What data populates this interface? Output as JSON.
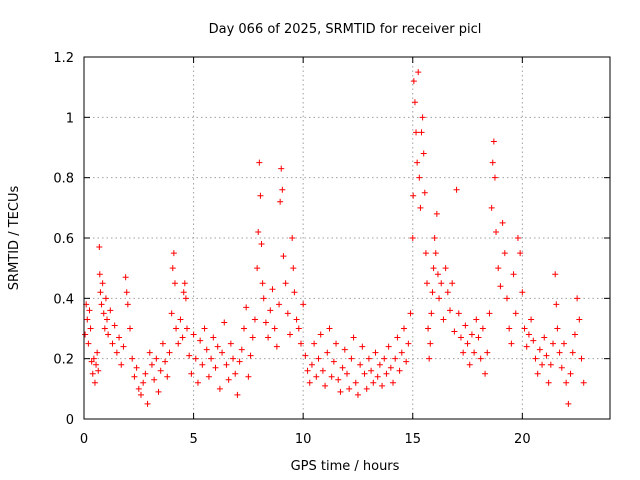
{
  "chart_data": {
    "type": "scatter",
    "title": "Day 066 of 2025, SRMTID for receiver picl",
    "xlabel": "GPS time / hours",
    "ylabel": "SRMTID / TECUs",
    "xlim": [
      0,
      24
    ],
    "ylim": [
      0,
      1.2
    ],
    "x_ticks": [
      0,
      5,
      10,
      15,
      20
    ],
    "x_tick_labels": [
      "0",
      "5",
      "10",
      "15",
      "20"
    ],
    "y_ticks": [
      0,
      0.2,
      0.4,
      0.6,
      0.8,
      1.0,
      1.2
    ],
    "y_tick_labels": [
      "0",
      "0.2",
      "0.4",
      "0.6",
      "0.8",
      "1",
      "1.2"
    ],
    "grid": true,
    "marker": "plus",
    "color": "#ff0000",
    "series": [
      {
        "name": "SRMTID",
        "points": [
          [
            0.05,
            0.28
          ],
          [
            0.1,
            0.38
          ],
          [
            0.15,
            0.33
          ],
          [
            0.2,
            0.25
          ],
          [
            0.25,
            0.36
          ],
          [
            0.3,
            0.3
          ],
          [
            0.35,
            0.19
          ],
          [
            0.4,
            0.15
          ],
          [
            0.45,
            0.2
          ],
          [
            0.5,
            0.12
          ],
          [
            0.55,
            0.18
          ],
          [
            0.6,
            0.22
          ],
          [
            0.65,
            0.16
          ],
          [
            0.7,
            0.57
          ],
          [
            0.72,
            0.48
          ],
          [
            0.75,
            0.42
          ],
          [
            0.8,
            0.38
          ],
          [
            0.85,
            0.45
          ],
          [
            0.9,
            0.35
          ],
          [
            0.95,
            0.3
          ],
          [
            1.0,
            0.4
          ],
          [
            1.05,
            0.33
          ],
          [
            1.1,
            0.28
          ],
          [
            1.2,
            0.36
          ],
          [
            1.3,
            0.25
          ],
          [
            1.4,
            0.31
          ],
          [
            1.5,
            0.22
          ],
          [
            1.6,
            0.27
          ],
          [
            1.7,
            0.18
          ],
          [
            1.8,
            0.24
          ],
          [
            1.9,
            0.47
          ],
          [
            1.95,
            0.42
          ],
          [
            2.0,
            0.38
          ],
          [
            2.1,
            0.3
          ],
          [
            2.2,
            0.2
          ],
          [
            2.3,
            0.14
          ],
          [
            2.4,
            0.17
          ],
          [
            2.5,
            0.1
          ],
          [
            2.6,
            0.08
          ],
          [
            2.7,
            0.12
          ],
          [
            2.8,
            0.15
          ],
          [
            2.9,
            0.05
          ],
          [
            3.0,
            0.22
          ],
          [
            3.1,
            0.18
          ],
          [
            3.2,
            0.13
          ],
          [
            3.3,
            0.2
          ],
          [
            3.4,
            0.09
          ],
          [
            3.5,
            0.16
          ],
          [
            3.6,
            0.25
          ],
          [
            3.7,
            0.19
          ],
          [
            3.8,
            0.14
          ],
          [
            3.9,
            0.22
          ],
          [
            4.0,
            0.35
          ],
          [
            4.05,
            0.5
          ],
          [
            4.1,
            0.55
          ],
          [
            4.15,
            0.45
          ],
          [
            4.2,
            0.3
          ],
          [
            4.3,
            0.25
          ],
          [
            4.4,
            0.33
          ],
          [
            4.5,
            0.27
          ],
          [
            4.55,
            0.42
          ],
          [
            4.6,
            0.45
          ],
          [
            4.65,
            0.4
          ],
          [
            4.7,
            0.3
          ],
          [
            4.8,
            0.21
          ],
          [
            4.9,
            0.15
          ],
          [
            5.0,
            0.28
          ],
          [
            5.1,
            0.2
          ],
          [
            5.2,
            0.12
          ],
          [
            5.3,
            0.26
          ],
          [
            5.4,
            0.18
          ],
          [
            5.5,
            0.3
          ],
          [
            5.6,
            0.23
          ],
          [
            5.7,
            0.14
          ],
          [
            5.8,
            0.2
          ],
          [
            5.9,
            0.27
          ],
          [
            6.0,
            0.17
          ],
          [
            6.1,
            0.24
          ],
          [
            6.2,
            0.1
          ],
          [
            6.3,
            0.22
          ],
          [
            6.4,
            0.32
          ],
          [
            6.5,
            0.18
          ],
          [
            6.6,
            0.13
          ],
          [
            6.7,
            0.25
          ],
          [
            6.8,
            0.2
          ],
          [
            6.9,
            0.15
          ],
          [
            7.0,
            0.08
          ],
          [
            7.1,
            0.19
          ],
          [
            7.2,
            0.23
          ],
          [
            7.3,
            0.3
          ],
          [
            7.4,
            0.37
          ],
          [
            7.5,
            0.14
          ],
          [
            7.6,
            0.21
          ],
          [
            7.7,
            0.27
          ],
          [
            7.8,
            0.33
          ],
          [
            7.9,
            0.5
          ],
          [
            7.95,
            0.62
          ],
          [
            8.0,
            0.85
          ],
          [
            8.05,
            0.74
          ],
          [
            8.1,
            0.58
          ],
          [
            8.15,
            0.45
          ],
          [
            8.2,
            0.4
          ],
          [
            8.3,
            0.32
          ],
          [
            8.4,
            0.27
          ],
          [
            8.5,
            0.36
          ],
          [
            8.6,
            0.43
          ],
          [
            8.7,
            0.3
          ],
          [
            8.8,
            0.24
          ],
          [
            8.9,
            0.38
          ],
          [
            8.95,
            0.72
          ],
          [
            9.0,
            0.83
          ],
          [
            9.05,
            0.76
          ],
          [
            9.1,
            0.54
          ],
          [
            9.2,
            0.45
          ],
          [
            9.3,
            0.35
          ],
          [
            9.4,
            0.28
          ],
          [
            9.5,
            0.6
          ],
          [
            9.55,
            0.5
          ],
          [
            9.6,
            0.42
          ],
          [
            9.7,
            0.33
          ],
          [
            9.8,
            0.3
          ],
          [
            9.9,
            0.25
          ],
          [
            10.0,
            0.38
          ],
          [
            10.1,
            0.21
          ],
          [
            10.2,
            0.16
          ],
          [
            10.3,
            0.12
          ],
          [
            10.4,
            0.18
          ],
          [
            10.5,
            0.25
          ],
          [
            10.6,
            0.14
          ],
          [
            10.7,
            0.2
          ],
          [
            10.8,
            0.28
          ],
          [
            10.9,
            0.16
          ],
          [
            11.0,
            0.11
          ],
          [
            11.1,
            0.22
          ],
          [
            11.2,
            0.3
          ],
          [
            11.3,
            0.14
          ],
          [
            11.4,
            0.19
          ],
          [
            11.5,
            0.25
          ],
          [
            11.6,
            0.13
          ],
          [
            11.7,
            0.09
          ],
          [
            11.8,
            0.17
          ],
          [
            11.9,
            0.23
          ],
          [
            12.0,
            0.15
          ],
          [
            12.1,
            0.1
          ],
          [
            12.2,
            0.2
          ],
          [
            12.3,
            0.27
          ],
          [
            12.4,
            0.12
          ],
          [
            12.5,
            0.08
          ],
          [
            12.6,
            0.18
          ],
          [
            12.7,
            0.24
          ],
          [
            12.8,
            0.15
          ],
          [
            12.9,
            0.1
          ],
          [
            13.0,
            0.2
          ],
          [
            13.1,
            0.16
          ],
          [
            13.2,
            0.12
          ],
          [
            13.3,
            0.22
          ],
          [
            13.4,
            0.14
          ],
          [
            13.5,
            0.18
          ],
          [
            13.6,
            0.11
          ],
          [
            13.7,
            0.2
          ],
          [
            13.8,
            0.15
          ],
          [
            13.9,
            0.24
          ],
          [
            14.0,
            0.17
          ],
          [
            14.1,
            0.12
          ],
          [
            14.2,
            0.2
          ],
          [
            14.3,
            0.27
          ],
          [
            14.4,
            0.16
          ],
          [
            14.5,
            0.22
          ],
          [
            14.6,
            0.3
          ],
          [
            14.7,
            0.19
          ],
          [
            14.8,
            0.25
          ],
          [
            14.9,
            0.35
          ],
          [
            15.0,
            0.6
          ],
          [
            15.02,
            0.74
          ],
          [
            15.05,
            1.12
          ],
          [
            15.1,
            1.05
          ],
          [
            15.15,
            0.95
          ],
          [
            15.2,
            0.85
          ],
          [
            15.25,
            1.15
          ],
          [
            15.3,
            0.8
          ],
          [
            15.35,
            0.7
          ],
          [
            15.4,
            0.95
          ],
          [
            15.45,
            1.0
          ],
          [
            15.5,
            0.88
          ],
          [
            15.55,
            0.75
          ],
          [
            15.6,
            0.55
          ],
          [
            15.65,
            0.45
          ],
          [
            15.7,
            0.3
          ],
          [
            15.75,
            0.2
          ],
          [
            15.8,
            0.25
          ],
          [
            15.85,
            0.35
          ],
          [
            15.9,
            0.42
          ],
          [
            15.95,
            0.5
          ],
          [
            16.0,
            0.6
          ],
          [
            16.05,
            0.55
          ],
          [
            16.1,
            0.68
          ],
          [
            16.15,
            0.48
          ],
          [
            16.2,
            0.4
          ],
          [
            16.3,
            0.45
          ],
          [
            16.4,
            0.33
          ],
          [
            16.5,
            0.5
          ],
          [
            16.6,
            0.42
          ],
          [
            16.7,
            0.36
          ],
          [
            16.8,
            0.45
          ],
          [
            16.9,
            0.29
          ],
          [
            17.0,
            0.76
          ],
          [
            17.1,
            0.35
          ],
          [
            17.2,
            0.27
          ],
          [
            17.3,
            0.22
          ],
          [
            17.4,
            0.31
          ],
          [
            17.5,
            0.25
          ],
          [
            17.6,
            0.18
          ],
          [
            17.7,
            0.28
          ],
          [
            17.8,
            0.22
          ],
          [
            17.9,
            0.33
          ],
          [
            18.0,
            0.27
          ],
          [
            18.1,
            0.2
          ],
          [
            18.2,
            0.3
          ],
          [
            18.3,
            0.15
          ],
          [
            18.4,
            0.22
          ],
          [
            18.5,
            0.35
          ],
          [
            18.6,
            0.7
          ],
          [
            18.65,
            0.85
          ],
          [
            18.7,
            0.92
          ],
          [
            18.75,
            0.8
          ],
          [
            18.8,
            0.62
          ],
          [
            18.9,
            0.5
          ],
          [
            19.0,
            0.44
          ],
          [
            19.1,
            0.65
          ],
          [
            19.2,
            0.55
          ],
          [
            19.3,
            0.4
          ],
          [
            19.4,
            0.3
          ],
          [
            19.5,
            0.25
          ],
          [
            19.6,
            0.48
          ],
          [
            19.7,
            0.35
          ],
          [
            19.8,
            0.6
          ],
          [
            19.9,
            0.55
          ],
          [
            20.0,
            0.42
          ],
          [
            20.1,
            0.3
          ],
          [
            20.2,
            0.24
          ],
          [
            20.3,
            0.28
          ],
          [
            20.4,
            0.33
          ],
          [
            20.5,
            0.26
          ],
          [
            20.6,
            0.2
          ],
          [
            20.7,
            0.15
          ],
          [
            20.8,
            0.23
          ],
          [
            20.9,
            0.18
          ],
          [
            21.0,
            0.27
          ],
          [
            21.1,
            0.21
          ],
          [
            21.2,
            0.12
          ],
          [
            21.3,
            0.18
          ],
          [
            21.4,
            0.25
          ],
          [
            21.5,
            0.48
          ],
          [
            21.55,
            0.38
          ],
          [
            21.6,
            0.3
          ],
          [
            21.7,
            0.22
          ],
          [
            21.8,
            0.17
          ],
          [
            21.9,
            0.25
          ],
          [
            22.0,
            0.12
          ],
          [
            22.1,
            0.05
          ],
          [
            22.2,
            0.15
          ],
          [
            22.3,
            0.22
          ],
          [
            22.4,
            0.28
          ],
          [
            22.5,
            0.4
          ],
          [
            22.6,
            0.33
          ],
          [
            22.7,
            0.2
          ],
          [
            22.8,
            0.12
          ]
        ]
      }
    ]
  }
}
